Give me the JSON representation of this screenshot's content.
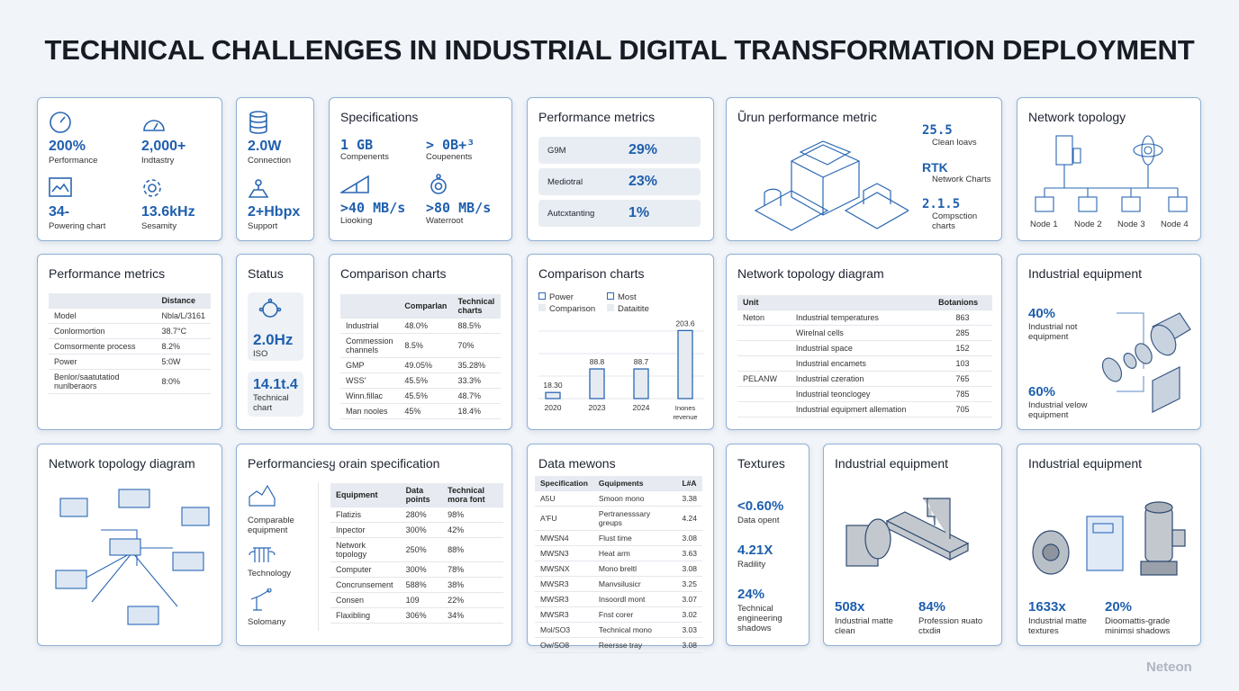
{
  "title": "TECHNICAL CHALLENGES IN INDUSTRIAL DIGITAL TRANSFORMATION DEPLOYMENT",
  "watermark": "Neteon",
  "accent": "#1f5fae",
  "r1c1": {
    "items": [
      {
        "icon": "gauge-icon",
        "value": "200%",
        "label": "Performance"
      },
      {
        "icon": "speedometer-icon",
        "value": "2,000+",
        "label": "Indtastry"
      },
      {
        "icon": "line-chart-icon",
        "value": "34-",
        "label": "Powering chart"
      },
      {
        "icon": "gear-icon",
        "value": "13.6kHz",
        "label": "Sesamity"
      }
    ]
  },
  "r1c2": {
    "items": [
      {
        "icon": "database-icon",
        "value": "2.0W",
        "label": "Connection"
      },
      {
        "icon": "map-pin-icon",
        "value": "2+Hbpx",
        "label": "Support"
      }
    ]
  },
  "r1c3": {
    "title": "Specifications",
    "items": [
      {
        "value": "1 GB",
        "label": "Compenents"
      },
      {
        "value": "> 0B+³",
        "label": "Coupenents"
      },
      {
        "icon": "ramp-icon",
        "value": ">40 MB/s",
        "label": "Liooking"
      },
      {
        "icon": "dial-icon",
        "value": ">80 MB/s",
        "label": "Waterroot"
      }
    ]
  },
  "r1c4": {
    "title": "Performance metrics",
    "rows": [
      {
        "label": "G9M",
        "value": "29%"
      },
      {
        "label": "Mediotral",
        "value": "23%"
      },
      {
        "label": "Autcxtanting",
        "value": "1%"
      }
    ]
  },
  "r1c5": {
    "title": "Ũrun performance metric",
    "items": [
      {
        "value": "25.5",
        "label": "Clean loavs"
      },
      {
        "value": "RTK",
        "label": "Network Charts"
      },
      {
        "value": "2.1.5",
        "label": "Compsction charts"
      }
    ]
  },
  "r1c6": {
    "title": "Network topology",
    "nodes": [
      "Node 1",
      "Node 2",
      "Node 3",
      "Node 4"
    ]
  },
  "r2c1": {
    "title": "Performance metrics",
    "header": [
      "",
      "Distance"
    ],
    "rows": [
      [
        "Model",
        "Nbla/L/3161"
      ],
      [
        "Conlormortion",
        "38.7°C"
      ],
      [
        "Comsormente process",
        "8.2%"
      ],
      [
        "Power",
        "5:0W"
      ],
      [
        "Benlor/saatutatiod nunlberaors",
        "8:0%"
      ]
    ]
  },
  "r2c2": {
    "title": "Status",
    "tiles": [
      {
        "value": "2.0Hz",
        "label": "ISO"
      },
      {
        "value": "14.1t.4",
        "label": "Technical chart"
      }
    ]
  },
  "r2c3": {
    "title": "Comparison charts",
    "header": [
      "",
      "Comparlan",
      "Technical charts"
    ],
    "rows": [
      [
        "Industrial",
        "48.0%",
        "88.5%"
      ],
      [
        "Commession channels",
        "8.5%",
        "70%"
      ],
      [
        "GMP",
        "49.05%",
        "35.28%"
      ],
      [
        "WSS'",
        "45.5%",
        "33.3%"
      ],
      [
        "Winn.fillac",
        "45.5%",
        "48.7%"
      ],
      [
        "Man nooles",
        "45%",
        "18.4%"
      ]
    ]
  },
  "r2c4": {
    "title": "Comparison charts",
    "legend": [
      "Power",
      "Most",
      "Comparison",
      "Dataitite"
    ],
    "chart_data": {
      "type": "bar",
      "categories": [
        "2020",
        "2023",
        "2024",
        "Inones revenue"
      ],
      "values": [
        18.3,
        88.8,
        88.7,
        203.6
      ],
      "value_labels": [
        "18.30",
        "88.8",
        "88.7",
        "203.6"
      ],
      "grid": true
    }
  },
  "r2c5": {
    "title": "Network topology diagram",
    "header": [
      "Unit",
      "",
      "Botanions"
    ],
    "groups": [
      {
        "unit": "Neton",
        "rows": [
          [
            "Industrial temperatures",
            "863"
          ],
          [
            "Wirelnal cells",
            "285"
          ],
          [
            "Industrial space",
            "152"
          ],
          [
            "Industrial encamets",
            "103"
          ]
        ]
      },
      {
        "unit": "PELANW",
        "rows": [
          [
            "Industrial czeration",
            "765"
          ],
          [
            "Industrial teonclogey",
            "785"
          ],
          [
            "Industrial equipmert allemation",
            "705"
          ]
        ]
      }
    ]
  },
  "r2c6": {
    "title": "Industrial equipment",
    "items": [
      {
        "value": "40%",
        "label": "Industrial not equipment"
      },
      {
        "value": "60%",
        "label": "Industrial velow equipment"
      }
    ]
  },
  "r3c1": {
    "title": "Network topology diagram"
  },
  "r3c2": {
    "title": "Performanciesყ orain specification",
    "side": [
      {
        "icon": "factory-icon",
        "label": "Comparable equipment"
      },
      {
        "icon": "pillars-icon",
        "label": "Technology"
      },
      {
        "icon": "robot-arm-icon",
        "label": "Solomany"
      }
    ],
    "header": [
      "Equipment",
      "Data points",
      "Technical mora font"
    ],
    "rows": [
      [
        "Flatizis",
        "280%",
        "98%"
      ],
      [
        "Inpector",
        "300%",
        "42%"
      ],
      [
        "Network topology",
        "250%",
        "88%"
      ],
      [
        "Computer",
        "300%",
        "78%"
      ],
      [
        "Concrunsement",
        "588%",
        "38%"
      ],
      [
        "Consen",
        "109",
        "22%"
      ],
      [
        "Flaxibling",
        "306%",
        "34%"
      ]
    ]
  },
  "r3c3": {
    "title": "Data mewons",
    "header": [
      "Specification",
      "Gquipments",
      "L#A"
    ],
    "rows": [
      [
        "A5U",
        "Smoon mono",
        "3.38"
      ],
      [
        "A'FU",
        "Pertranesssary greups",
        "4.24"
      ],
      [
        "MWSN4",
        "Flust time",
        "3.08"
      ],
      [
        "MWSN3",
        "Heat arm",
        "3.63"
      ],
      [
        "MWSNX",
        "Mono breltl",
        "3.08"
      ],
      [
        "MWSR3",
        "Manvsilusicr",
        "3.25"
      ],
      [
        "MWSR3",
        "Insoordl mont",
        "3.07"
      ],
      [
        "MWSR3",
        "Fnst corer",
        "3.02"
      ],
      [
        "Mol/SO3",
        "Technical mono",
        "3.03"
      ],
      [
        "Ow/SO8",
        "Reersse tray",
        "3.08"
      ]
    ]
  },
  "r3c4": {
    "title": "Textures",
    "items": [
      {
        "value": "<0.60%",
        "label": "Data opent"
      },
      {
        "value": "4.21X",
        "label": "Radility"
      },
      {
        "value": "24%",
        "label": "Technical engineering shadows"
      }
    ]
  },
  "r3c5": {
    "title": "Industrial equipment",
    "items": [
      {
        "value": "508x",
        "label": "Industrial matte clean"
      },
      {
        "value": "84%",
        "label": "Profession яuato ctxdiя"
      }
    ]
  },
  "r3c6": {
    "title": "Industrial equipment",
    "items": [
      {
        "value": "1633x",
        "label": "Industrial matte textures"
      },
      {
        "value": "20%",
        "label": "Dioomattis-grade minimsi shadows"
      }
    ]
  }
}
